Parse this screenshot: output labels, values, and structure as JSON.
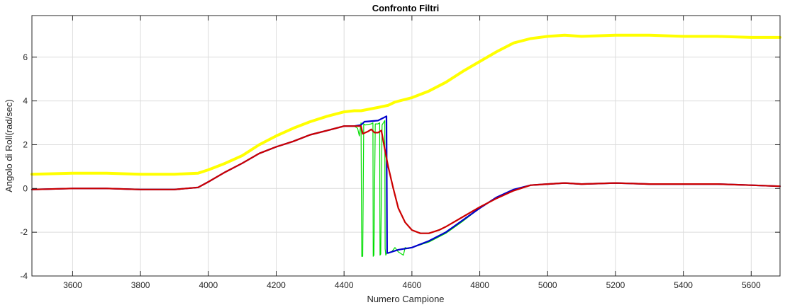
{
  "chart_data": {
    "type": "line",
    "title": "Confronto Filtri",
    "xlabel": "Numero Campione",
    "ylabel": "Angolo di Roll(rad/sec)",
    "xlim": [
      3480,
      5685
    ],
    "ylim": [
      -4,
      7.9
    ],
    "xticks": [
      3600,
      3800,
      4000,
      4200,
      4400,
      4600,
      4800,
      5000,
      5200,
      5400,
      5600
    ],
    "yticks": [
      -4,
      -2,
      0,
      2,
      4,
      6
    ],
    "grid": true,
    "colors": {
      "yellow": "#ffff00",
      "green": "#00dd00",
      "blue": "#0000cc",
      "red": "#cc0000",
      "grid": "#dcdcdc",
      "box": "#262626"
    },
    "series": [
      {
        "color": "#ffff00",
        "width": 4,
        "x": [
          3480,
          3600,
          3700,
          3800,
          3900,
          3970,
          4000,
          4050,
          4100,
          4150,
          4200,
          4250,
          4300,
          4350,
          4400,
          4430,
          4450,
          4500,
          4530,
          4550,
          4600,
          4650,
          4700,
          4750,
          4800,
          4850,
          4900,
          4950,
          5000,
          5050,
          5100,
          5200,
          5300,
          5400,
          5500,
          5600,
          5685
        ],
        "y": [
          0.65,
          0.7,
          0.7,
          0.65,
          0.65,
          0.7,
          0.85,
          1.15,
          1.5,
          2.0,
          2.4,
          2.75,
          3.05,
          3.3,
          3.5,
          3.55,
          3.55,
          3.7,
          3.8,
          3.95,
          4.15,
          4.45,
          4.85,
          5.35,
          5.8,
          6.25,
          6.65,
          6.85,
          6.95,
          7.0,
          6.95,
          7.0,
          7.0,
          6.95,
          6.95,
          6.9,
          6.9
        ]
      },
      {
        "color": "#00dd00",
        "width": 1.2,
        "x": [
          3480,
          3600,
          3700,
          3800,
          3900,
          3970,
          4000,
          4050,
          4100,
          4150,
          4200,
          4250,
          4300,
          4350,
          4400,
          4430,
          4440,
          4445,
          4450,
          4452,
          4455,
          4458,
          4462,
          4480,
          4485,
          4486,
          4488,
          4492,
          4500,
          4505,
          4506,
          4508,
          4512,
          4518,
          4520,
          4521,
          4523,
          4526,
          4540,
          4550,
          4560,
          4575,
          4580,
          4590,
          4600,
          4650,
          4700,
          4750,
          4800,
          4850,
          4900,
          4950,
          5000,
          5050,
          5100,
          5200,
          5300,
          5400,
          5500,
          5600,
          5685
        ],
        "y": [
          -0.05,
          0.0,
          0.0,
          -0.05,
          -0.05,
          0.05,
          0.3,
          0.75,
          1.15,
          1.6,
          1.9,
          2.15,
          2.45,
          2.65,
          2.85,
          2.85,
          2.75,
          2.4,
          3.0,
          -3.1,
          -3.1,
          2.95,
          2.9,
          2.95,
          3.0,
          -3.1,
          -3.05,
          2.95,
          2.95,
          3.0,
          -3.05,
          -3.0,
          2.9,
          3.05,
          3.1,
          -2.75,
          -3.05,
          -2.95,
          -2.9,
          -2.7,
          -2.9,
          -3.05,
          -2.7,
          -2.75,
          -2.7,
          -2.45,
          -2.05,
          -1.5,
          -0.9,
          -0.4,
          -0.05,
          0.15,
          0.2,
          0.25,
          0.2,
          0.25,
          0.2,
          0.2,
          0.2,
          0.15,
          0.1
        ]
      },
      {
        "color": "#0000cc",
        "width": 2.2,
        "x": [
          3480,
          3600,
          3700,
          3800,
          3900,
          3970,
          4000,
          4050,
          4100,
          4150,
          4200,
          4250,
          4300,
          4350,
          4400,
          4430,
          4450,
          4460,
          4500,
          4525,
          4527,
          4530,
          4560,
          4600,
          4650,
          4700,
          4750,
          4800,
          4850,
          4900,
          4950,
          5000,
          5050,
          5100,
          5200,
          5300,
          5400,
          5500,
          5600,
          5685
        ],
        "y": [
          -0.05,
          0.0,
          0.0,
          -0.05,
          -0.05,
          0.05,
          0.3,
          0.75,
          1.15,
          1.6,
          1.9,
          2.15,
          2.45,
          2.65,
          2.85,
          2.85,
          2.9,
          3.05,
          3.1,
          3.3,
          -2.95,
          -2.95,
          -2.8,
          -2.7,
          -2.4,
          -2.0,
          -1.45,
          -0.9,
          -0.4,
          -0.05,
          0.15,
          0.2,
          0.25,
          0.2,
          0.25,
          0.2,
          0.2,
          0.2,
          0.15,
          0.1
        ]
      },
      {
        "color": "#cc0000",
        "width": 2.2,
        "x": [
          3480,
          3600,
          3700,
          3800,
          3900,
          3970,
          4000,
          4050,
          4100,
          4150,
          4200,
          4250,
          4300,
          4350,
          4400,
          4430,
          4450,
          4455,
          4470,
          4480,
          4490,
          4500,
          4510,
          4520,
          4530,
          4545,
          4560,
          4580,
          4600,
          4625,
          4650,
          4680,
          4700,
          4750,
          4800,
          4850,
          4900,
          4950,
          5000,
          5050,
          5100,
          5200,
          5300,
          5400,
          5500,
          5600,
          5685
        ],
        "y": [
          -0.05,
          0.0,
          0.0,
          -0.05,
          -0.05,
          0.05,
          0.3,
          0.75,
          1.15,
          1.6,
          1.9,
          2.15,
          2.45,
          2.65,
          2.85,
          2.85,
          2.85,
          2.5,
          2.6,
          2.7,
          2.55,
          2.55,
          2.65,
          1.8,
          1.0,
          0.0,
          -0.9,
          -1.55,
          -1.9,
          -2.05,
          -2.05,
          -1.9,
          -1.75,
          -1.3,
          -0.85,
          -0.45,
          -0.1,
          0.15,
          0.2,
          0.25,
          0.2,
          0.25,
          0.2,
          0.2,
          0.2,
          0.15,
          0.1
        ]
      }
    ]
  }
}
